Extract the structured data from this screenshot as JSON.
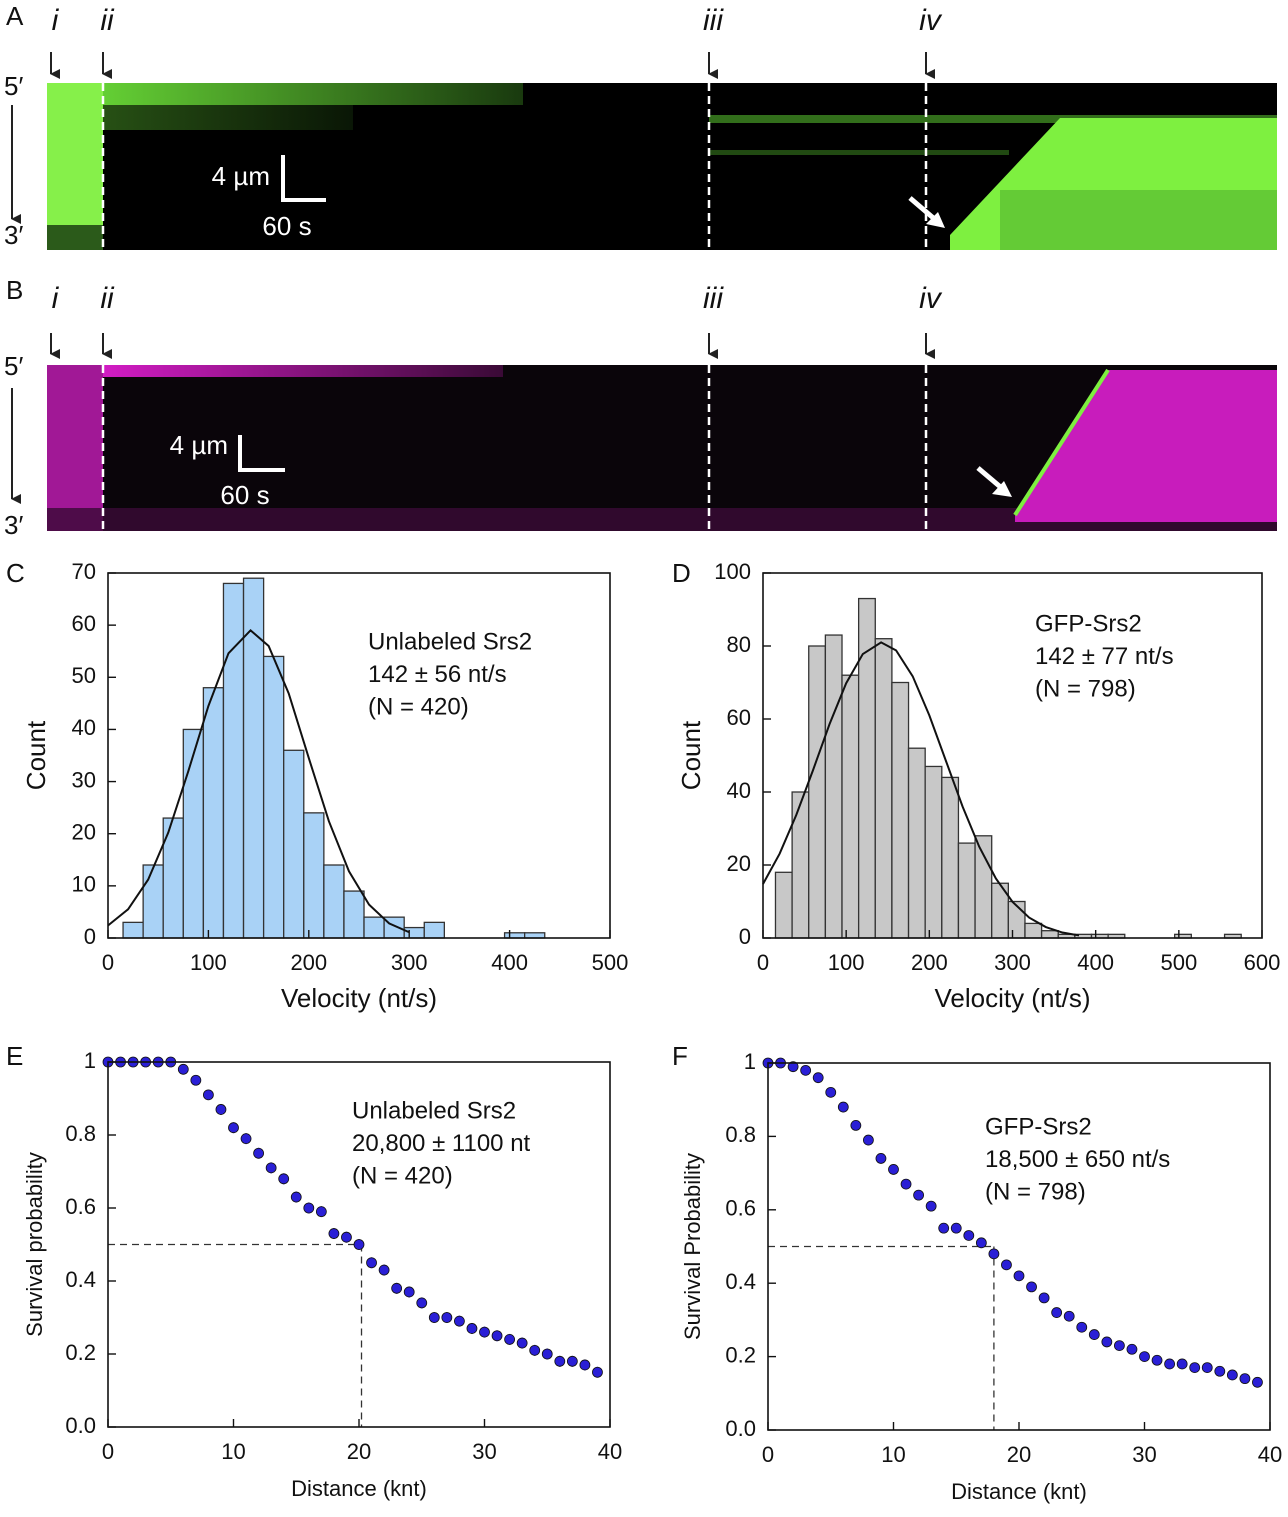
{
  "kymographs": [
    {
      "letter": "A",
      "markers": [
        "i",
        "ii",
        "iii",
        "iv"
      ],
      "end_top": "5′",
      "end_bottom": "3′",
      "scale_length": "4 µm",
      "scale_time": "60 s"
    },
    {
      "letter": "B",
      "markers": [
        "i",
        "ii",
        "iii",
        "iv"
      ],
      "end_top": "5′",
      "end_bottom": "3′",
      "scale_length": "4 µm",
      "scale_time": "60 s"
    }
  ],
  "chart_data": [
    {
      "type": "histogram",
      "letter": "C",
      "xlabel": "Velocity (nt/s)",
      "ylabel": "Count",
      "color": "#a9d2f6",
      "annotation": [
        "Unlabeled Srs2",
        "142 ± 56 nt/s",
        "(N = 420)"
      ],
      "bins": [
        15,
        35,
        55,
        75,
        95,
        115,
        135,
        155,
        175,
        195,
        215,
        235,
        255,
        275,
        295,
        315,
        335,
        355,
        375,
        395,
        415,
        435
      ],
      "values": [
        3,
        14,
        23,
        40,
        48,
        68,
        69,
        54,
        36,
        24,
        14,
        9,
        4,
        4,
        2,
        3,
        0,
        0,
        0,
        1,
        1
      ],
      "fit": {
        "x": [
          0,
          20,
          40,
          60,
          80,
          100,
          120,
          142,
          160,
          180,
          200,
          220,
          240,
          260,
          280,
          300
        ],
        "y": [
          2.4,
          5.5,
          11.2,
          20.2,
          32,
          44.5,
          54.6,
          59,
          56,
          46.9,
          34.5,
          22.4,
          12.8,
          6.4,
          2.8,
          1.1
        ]
      },
      "xlim": [
        0,
        500
      ],
      "xticks": [
        0,
        100,
        200,
        300,
        400,
        500
      ],
      "ylim": [
        0,
        70
      ],
      "yticks": [
        0,
        10,
        20,
        30,
        40,
        50,
        60,
        70
      ]
    },
    {
      "type": "histogram",
      "letter": "D",
      "xlabel": "Velocity (nt/s)",
      "ylabel": "Count",
      "color": "#c8c8c8",
      "annotation": [
        "GFP-Srs2",
        "142 ± 77 nt/s",
        "(N = 798)"
      ],
      "bins": [
        15,
        35,
        55,
        75,
        95,
        115,
        135,
        155,
        175,
        195,
        215,
        235,
        255,
        275,
        295,
        315,
        335,
        355,
        375,
        395,
        415,
        435,
        455,
        475,
        495,
        515,
        535,
        555,
        575
      ],
      "values": [
        18,
        40,
        80,
        83,
        72,
        93,
        82,
        70,
        52,
        47,
        44,
        26,
        28,
        15,
        10,
        4,
        2,
        1,
        1,
        1,
        1,
        0,
        0,
        0,
        1,
        0,
        0,
        1
      ],
      "fit": {
        "x": [
          0,
          20,
          40,
          60,
          80,
          100,
          120,
          142,
          160,
          180,
          200,
          220,
          240,
          260,
          280,
          300,
          320,
          340,
          360,
          380
        ],
        "y": [
          14.8,
          23.1,
          33.7,
          45.9,
          58.6,
          69.8,
          77.8,
          81,
          78.8,
          71.7,
          61,
          48.5,
          36,
          25,
          16.3,
          9.9,
          5.6,
          3,
          1.5,
          0.7
        ]
      },
      "xlim": [
        0,
        600
      ],
      "xticks": [
        0,
        100,
        200,
        300,
        400,
        500,
        600
      ],
      "ylim": [
        0,
        100
      ],
      "yticks": [
        0,
        20,
        40,
        60,
        80,
        100
      ]
    },
    {
      "type": "scatter",
      "letter": "E",
      "xlabel": "Distance (knt)",
      "ylabel": "Survival probability",
      "color": "#2a1fd6",
      "annotation": [
        "Unlabeled Srs2",
        "20,800 ± 1100 nt",
        "(N = 420)"
      ],
      "x": [
        0,
        1,
        2,
        3,
        4,
        5,
        6,
        7,
        8,
        9,
        10,
        11,
        12,
        13,
        14,
        15,
        16,
        17,
        18,
        19,
        20,
        21,
        22,
        23,
        24,
        25,
        26,
        27,
        28,
        29,
        30,
        31,
        32,
        33,
        34,
        35,
        36,
        37,
        38,
        39
      ],
      "values": [
        1,
        1,
        1,
        1,
        1,
        1,
        0.98,
        0.95,
        0.91,
        0.87,
        0.82,
        0.79,
        0.75,
        0.71,
        0.68,
        0.63,
        0.6,
        0.59,
        0.53,
        0.52,
        0.5,
        0.45,
        0.43,
        0.38,
        0.37,
        0.34,
        0.3,
        0.3,
        0.29,
        0.27,
        0.26,
        0.25,
        0.24,
        0.23,
        0.21,
        0.2,
        0.18,
        0.18,
        0.17,
        0.15
      ],
      "errors": [
        0.005,
        0.005,
        0.005,
        0.005,
        0.005,
        0.005,
        0.01,
        0.012,
        0.014,
        0.015,
        0.015,
        0.015,
        0.015,
        0.015,
        0.015,
        0.015,
        0.015,
        0.015,
        0.015,
        0.015,
        0.015,
        0.015,
        0.015,
        0.015,
        0.015,
        0.015,
        0.015,
        0.015,
        0.015,
        0.015,
        0.015,
        0.015,
        0.015,
        0.015,
        0.015,
        0.015,
        0.015,
        0.015,
        0.015,
        0.015
      ],
      "guide": {
        "x": 20.2,
        "y": 0.5
      },
      "xlim": [
        0,
        40
      ],
      "xticks": [
        0,
        10,
        20,
        30,
        40
      ],
      "ylim": [
        0,
        1
      ],
      "yticks": [
        {
          "value": 0,
          "label": "0.0"
        },
        0.2,
        0.4,
        0.6,
        0.8,
        1
      ]
    },
    {
      "type": "scatter",
      "letter": "F",
      "xlabel": "Distance (knt)",
      "ylabel": "Survival Probability",
      "color": "#2a1fd6",
      "annotation": [
        "GFP-Srs2",
        "18,500 ± 650 nt/s",
        "(N = 798)"
      ],
      "x": [
        0,
        1,
        2,
        3,
        4,
        5,
        6,
        7,
        8,
        9,
        10,
        11,
        12,
        13,
        14,
        15,
        16,
        17,
        18,
        19,
        20,
        21,
        22,
        23,
        24,
        25,
        26,
        27,
        28,
        29,
        30,
        31,
        32,
        33,
        34,
        35,
        36,
        37,
        38,
        39
      ],
      "values": [
        1,
        1,
        0.99,
        0.98,
        0.96,
        0.92,
        0.88,
        0.83,
        0.79,
        0.74,
        0.71,
        0.67,
        0.64,
        0.61,
        0.55,
        0.55,
        0.53,
        0.51,
        0.48,
        0.45,
        0.42,
        0.39,
        0.36,
        0.32,
        0.31,
        0.28,
        0.26,
        0.24,
        0.23,
        0.22,
        0.2,
        0.19,
        0.18,
        0.18,
        0.17,
        0.17,
        0.16,
        0.15,
        0.14,
        0.13
      ],
      "errors": [
        0.005,
        0.005,
        0.005,
        0.006,
        0.007,
        0.008,
        0.009,
        0.01,
        0.01,
        0.01,
        0.01,
        0.01,
        0.01,
        0.01,
        0.01,
        0.01,
        0.01,
        0.01,
        0.01,
        0.01,
        0.01,
        0.01,
        0.01,
        0.01,
        0.01,
        0.01,
        0.01,
        0.01,
        0.01,
        0.01,
        0.01,
        0.01,
        0.01,
        0.01,
        0.01,
        0.01,
        0.01,
        0.01,
        0.01,
        0.01
      ],
      "guide": {
        "x": 18,
        "y": 0.5
      },
      "xlim": [
        0,
        40
      ],
      "xticks": [
        0,
        10,
        20,
        30,
        40
      ],
      "ylim": [
        0,
        1
      ],
      "yticks": [
        {
          "value": 0,
          "label": "0.0"
        },
        0.2,
        0.4,
        0.6,
        0.8,
        1
      ]
    }
  ]
}
